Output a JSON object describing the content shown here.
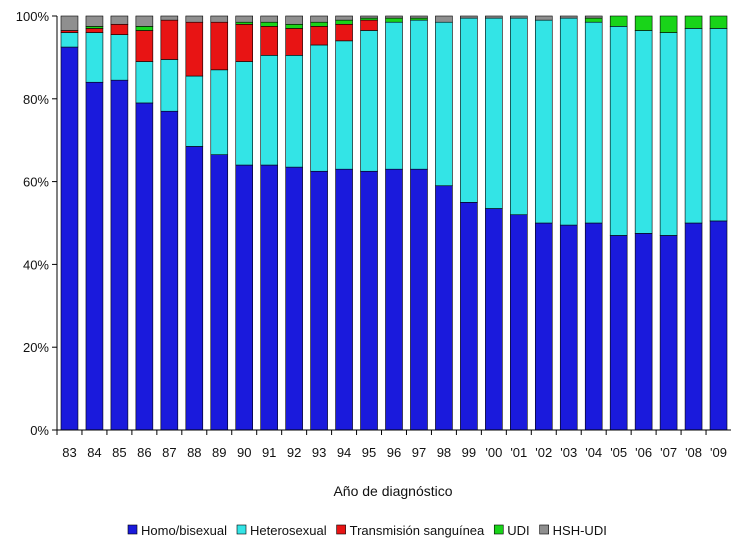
{
  "chart_data": {
    "type": "bar",
    "stacked": true,
    "percent": true,
    "title": "",
    "xlabel": "Año de diagnóstico",
    "ylabel": "",
    "ylim": [
      0,
      100
    ],
    "yticks": [
      "0%",
      "20%",
      "40%",
      "60%",
      "80%",
      "100%"
    ],
    "legend_position": "bottom",
    "grid": false,
    "categories": [
      "83",
      "84",
      "85",
      "86",
      "87",
      "88",
      "89",
      "90",
      "91",
      "92",
      "93",
      "94",
      "95",
      "96",
      "97",
      "98",
      "99",
      "'00",
      "'01",
      "'02",
      "'03",
      "'04",
      "'05",
      "'06",
      "'07",
      "'08",
      "'09"
    ],
    "series": [
      {
        "name": "Homo/bisexual",
        "color": "#1a1adc",
        "values": [
          92.5,
          84,
          84.5,
          79,
          77,
          68.5,
          66.5,
          64,
          64,
          63.5,
          62.5,
          63,
          62.5,
          63,
          63,
          59,
          55,
          53.5,
          52,
          50,
          49.5,
          50,
          47,
          47.5,
          47,
          50,
          50.5
        ]
      },
      {
        "name": "Heterosexual",
        "color": "#33e4e6",
        "values": [
          3.5,
          12,
          11,
          10,
          12.5,
          17,
          20.5,
          25,
          26.5,
          27,
          30.5,
          31,
          34,
          35.5,
          36,
          39.5,
          44.5,
          46,
          47.5,
          49,
          50,
          48.5,
          50.5,
          49,
          49,
          47,
          46.5
        ]
      },
      {
        "name": "Transmisión sanguínea",
        "color": "#e81414",
        "values": [
          0.5,
          1,
          2.5,
          7.5,
          9.5,
          13,
          11.5,
          9,
          7,
          6.5,
          4.5,
          4,
          2.5,
          0,
          0,
          0,
          0,
          0,
          0,
          0,
          0,
          0,
          0,
          0,
          0,
          0,
          0
        ]
      },
      {
        "name": "UDI",
        "color": "#19d419",
        "values": [
          0,
          0.5,
          0,
          1,
          0,
          0,
          0,
          0.5,
          1,
          1,
          1,
          1,
          0.5,
          1,
          0.5,
          0,
          0,
          0,
          0,
          0,
          0,
          1,
          2.5,
          3.5,
          4,
          3,
          3
        ]
      },
      {
        "name": "HSH-UDI",
        "color": "#8f8f8f",
        "values": [
          3.5,
          2.5,
          2,
          2.5,
          1,
          1.5,
          1.5,
          1.5,
          1.5,
          2,
          1.5,
          1,
          0.5,
          0.5,
          0.5,
          1.5,
          0.5,
          0.5,
          0.5,
          1,
          0.5,
          0.5,
          0,
          0,
          0,
          0,
          0
        ]
      }
    ]
  }
}
